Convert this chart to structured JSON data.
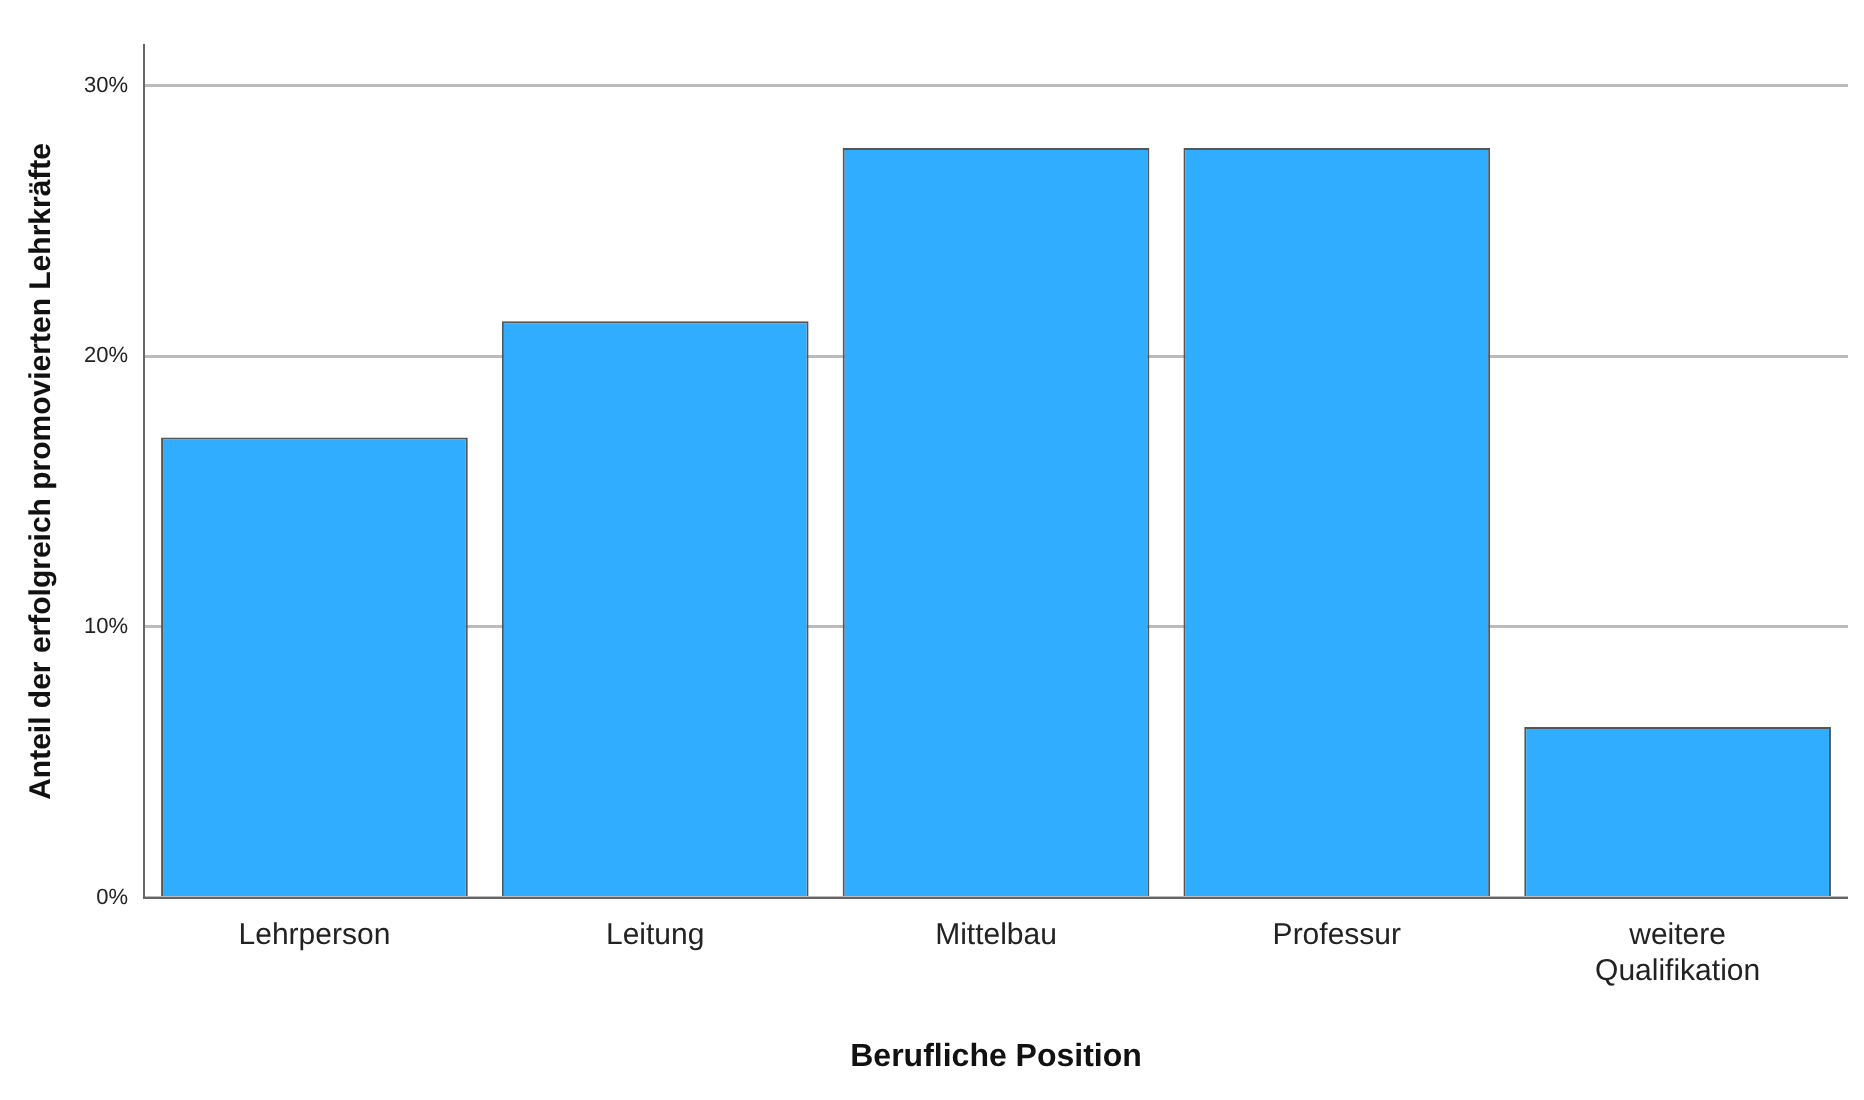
{
  "chart_data": {
    "type": "bar",
    "xlabel": "Berufliche Position",
    "ylabel": "Anteil der erfolgreich promovierten Lehrkräfte",
    "categories": [
      "Lehrperson",
      "Leitung",
      "Mittelbau",
      "Professur",
      "weitere Qualifikation"
    ],
    "values": [
      17.0,
      21.3,
      27.7,
      27.7,
      6.3
    ],
    "color": "#30adff",
    "ylim": [
      0,
      31.5
    ],
    "yticks": [
      {
        "value": 0,
        "label": "0%"
      },
      {
        "value": 10,
        "label": "10%"
      },
      {
        "value": 20,
        "label": "20%"
      },
      {
        "value": 30,
        "label": "30%"
      }
    ],
    "grid": "y"
  }
}
